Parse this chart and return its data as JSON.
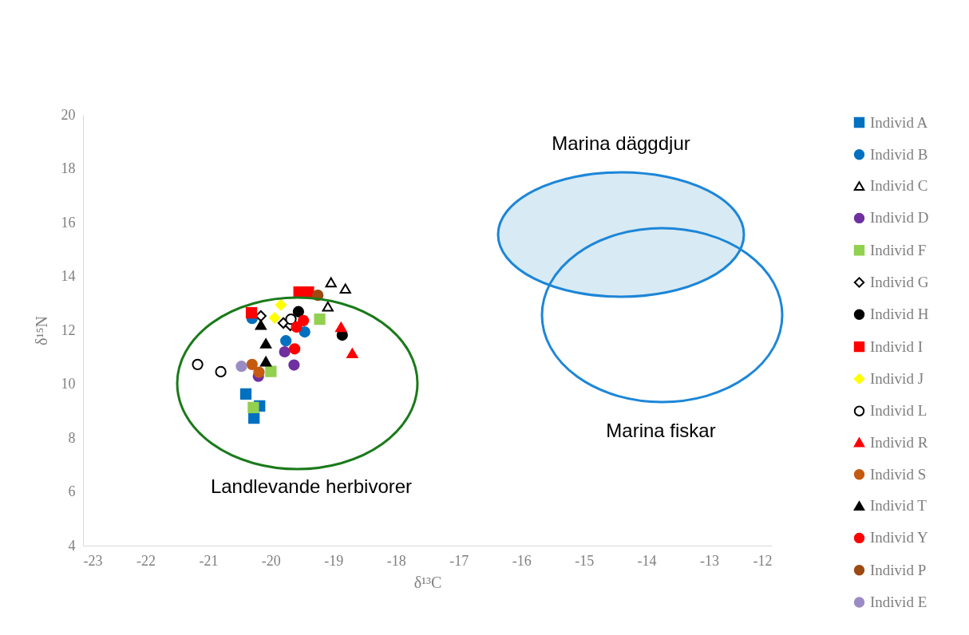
{
  "chart_data": {
    "type": "scatter",
    "xlabel": "δ¹³C",
    "ylabel": "δ¹⁵N",
    "xlim": [
      -23,
      -12
    ],
    "annotations": [
      "Marina däggdjur",
      "Marina fiskar",
      "Landlevande herbivorer"
    ],
    "xticks": [
      -23,
      -22,
      -21,
      -20,
      -19,
      -18,
      -17,
      -16,
      -15,
      -14,
      -13,
      -12
    ],
    "ylim": [
      4,
      20
    ],
    "yticks": [
      4,
      6,
      8,
      10,
      12,
      14,
      16,
      18,
      20
    ],
    "grid": false,
    "legend": "right",
    "series": [
      {
        "name": "Individ A",
        "marker": "square",
        "color": "#0070c0",
        "x": [
          -20.4,
          -20.18,
          -20.27
        ],
        "values": [
          9.63,
          9.19,
          8.74
        ]
      },
      {
        "name": "Individ B",
        "marker": "circle",
        "color": "#0070c0",
        "x": [
          -20.3,
          -19.76,
          -19.46
        ],
        "values": [
          12.44,
          11.61,
          11.94
        ]
      },
      {
        "name": "Individ C",
        "marker": "triangle",
        "color": "#ffffff",
        "x": [
          -19.04,
          -18.81,
          -19.09
        ],
        "values": [
          13.78,
          13.55,
          12.88
        ]
      },
      {
        "name": "Individ D",
        "marker": "circle",
        "color": "#7030a0",
        "x": [
          -19.78,
          -19.63,
          -20.2
        ],
        "values": [
          11.2,
          10.71,
          10.29
        ]
      },
      {
        "name": "Individ F",
        "marker": "square",
        "color": "#92d050",
        "x": [
          -19.22,
          -20.0,
          -20.28
        ],
        "values": [
          12.41,
          10.47,
          9.13
        ]
      },
      {
        "name": "Individ G",
        "marker": "diamond",
        "color": "#ffffff",
        "x": [
          -20.16,
          -19.8,
          -19.69
        ],
        "values": [
          12.53,
          12.27,
          12.18
        ]
      },
      {
        "name": "Individ H",
        "marker": "circle",
        "color": "#000000",
        "x": [
          -19.56,
          -18.86
        ],
        "values": [
          12.69,
          11.82
        ]
      },
      {
        "name": "Individ I",
        "marker": "square",
        "color": "#ff0000",
        "x": [
          -20.31,
          -19.55,
          -19.4
        ],
        "values": [
          12.65,
          13.42,
          13.42
        ]
      },
      {
        "name": "Individ J",
        "marker": "diamond",
        "color": "#ffff00",
        "x": [
          -19.84,
          -19.94
        ],
        "values": [
          12.94,
          12.46
        ]
      },
      {
        "name": "Individ L",
        "marker": "circle",
        "color": "#ffffff",
        "x": [
          -21.17,
          -20.8,
          -19.68
        ],
        "values": [
          10.73,
          10.46,
          12.41
        ]
      },
      {
        "name": "Individ R",
        "marker": "triangle",
        "color": "#ff0000",
        "x": [
          -18.88,
          -18.7
        ],
        "values": [
          12.12,
          11.15
        ]
      },
      {
        "name": "Individ S",
        "marker": "circle",
        "color": "#c55a11",
        "x": [
          -20.3,
          -20.19
        ],
        "values": [
          10.73,
          10.44
        ]
      },
      {
        "name": "Individ T",
        "marker": "triangle",
        "color": "#000000",
        "x": [
          -20.16,
          -20.08,
          -20.08
        ],
        "values": [
          12.2,
          11.51,
          10.84
        ]
      },
      {
        "name": "Individ Y",
        "marker": "circle",
        "color": "#ff0000",
        "x": [
          -19.48,
          -19.59,
          -19.62
        ],
        "values": [
          12.36,
          12.12,
          11.31
        ]
      },
      {
        "name": "Individ P",
        "marker": "circle",
        "color": "#9c4a12",
        "x": [
          -19.25
        ],
        "values": [
          13.3
        ]
      },
      {
        "name": "Individ E",
        "marker": "circle",
        "color": "#9b8bc4",
        "x": [
          -20.47
        ],
        "values": [
          10.66
        ]
      }
    ]
  }
}
